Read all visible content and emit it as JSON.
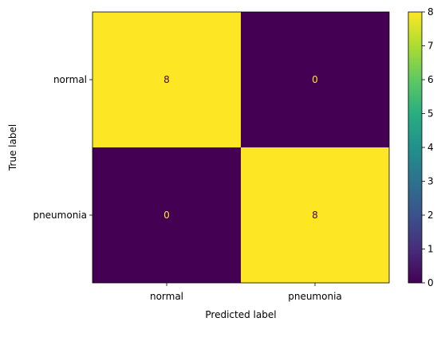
{
  "chart_data": {
    "type": "heatmap",
    "title": "",
    "xlabel": "Predicted label",
    "ylabel": "True label",
    "x_categories": [
      "normal",
      "pneumonia"
    ],
    "y_categories": [
      "normal",
      "pneumonia"
    ],
    "values": [
      [
        8,
        0
      ],
      [
        0,
        8
      ]
    ],
    "colorbar": {
      "min": 0,
      "max": 8,
      "ticks": [
        "0",
        "1",
        "2",
        "3",
        "4",
        "5",
        "6",
        "7",
        "8"
      ],
      "colormap": "viridis"
    },
    "colors": {
      "low": "#440154",
      "high": "#fde725",
      "text_on_low": "#fde725",
      "text_on_high": "#440154"
    }
  }
}
